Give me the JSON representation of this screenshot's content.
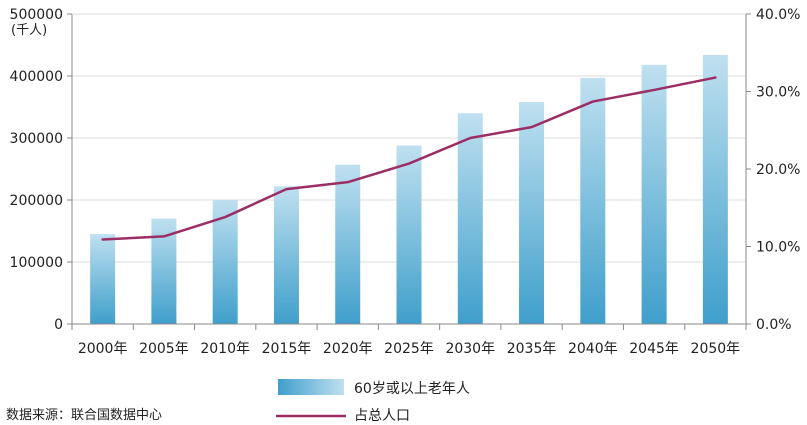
{
  "chart_data": {
    "type": "bar",
    "title": "",
    "categories": [
      "2000年",
      "2005年",
      "2010年",
      "2015年",
      "2020年",
      "2025年",
      "2030年",
      "2035年",
      "2040年",
      "2045年",
      "2050年"
    ],
    "left_axis": {
      "unit_label": "(千人)",
      "ylim": [
        0,
        500000
      ],
      "ticks": [
        "0",
        "100000",
        "200000",
        "300000",
        "400000",
        "500000"
      ]
    },
    "right_axis": {
      "ylim": [
        0,
        40
      ],
      "ticks": [
        "0.0%",
        "10.0%",
        "20.0%",
        "30.0%",
        "40.0%"
      ]
    },
    "series": [
      {
        "name": "60岁或以上老年人",
        "type": "bar",
        "axis": "left",
        "values": [
          145000,
          170000,
          200000,
          222000,
          257000,
          288000,
          340000,
          358000,
          397000,
          418000,
          434000
        ]
      },
      {
        "name": "占总人口",
        "type": "line",
        "axis": "right",
        "values": [
          10.9,
          11.3,
          13.8,
          17.4,
          18.3,
          20.7,
          24.0,
          25.4,
          28.7,
          30.2,
          31.8
        ]
      }
    ],
    "grid": true,
    "legend_position": "bottom"
  },
  "colors": {
    "bar_top": "#bfe0f0",
    "bar_bottom": "#3f9fcb",
    "line": "#9c2e66",
    "grid": "#dddddd",
    "axis": "#888888"
  },
  "source_text": "数据来源：联合国数据中心"
}
